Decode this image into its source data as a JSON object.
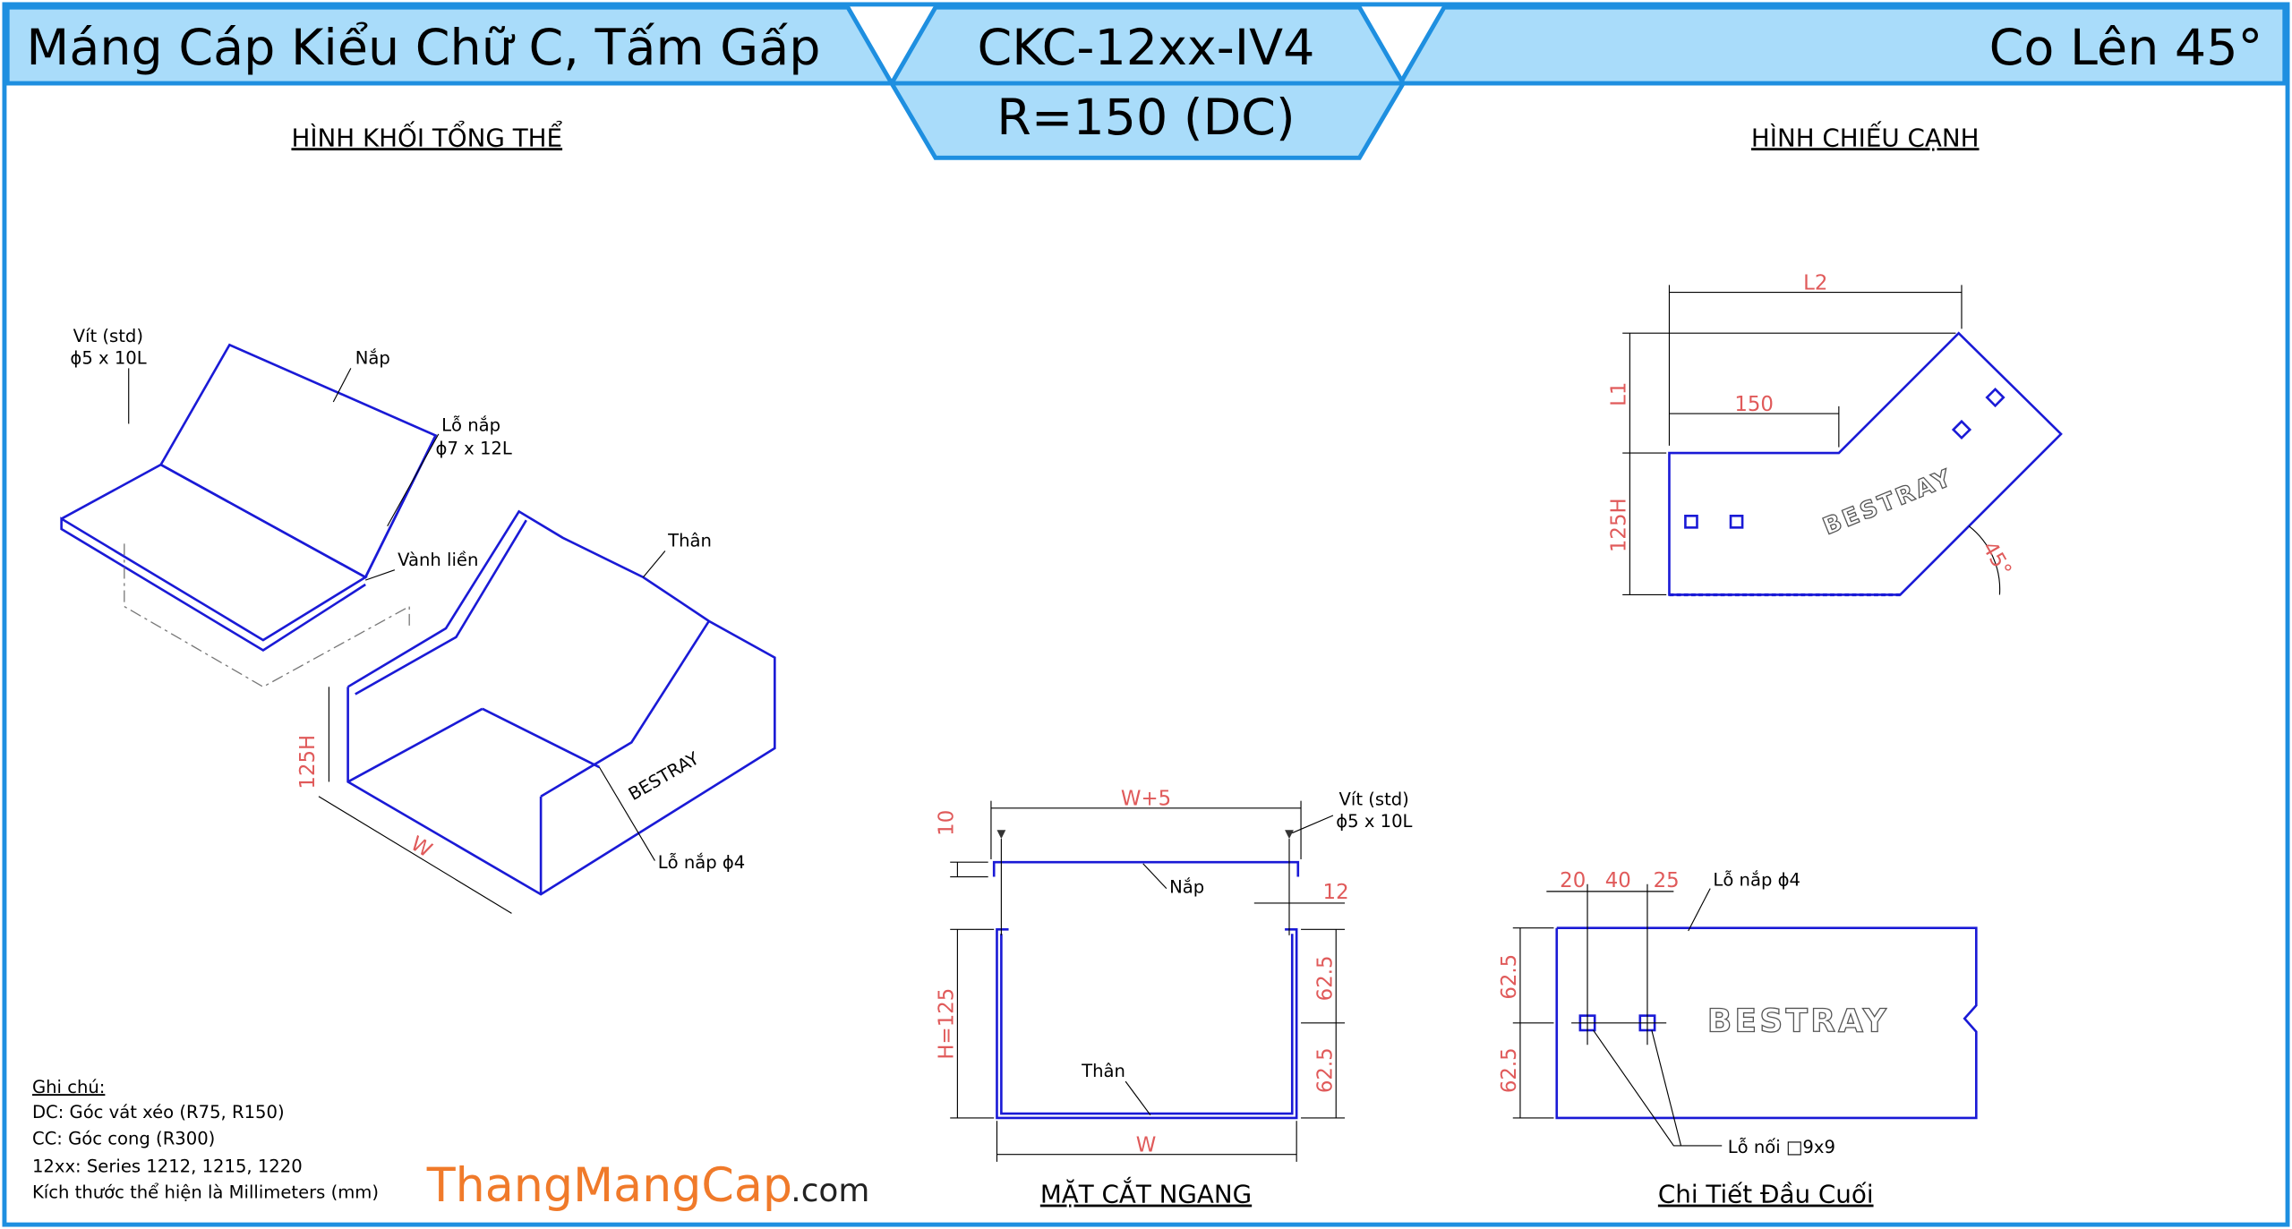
{
  "header": {
    "title": "Máng Cáp Kiểu Chữ C, Tấm Gấp",
    "code": "CKC-12xx-IV4",
    "radius": "R=150 (DC)",
    "variant": "Co Lên 45°"
  },
  "isometric": {
    "title": "HÌNH KHỐI TỔNG THỂ",
    "labels": [
      "Vít (std)",
      "ϕ5 x 10L",
      "Nắp",
      "Lỗ nắp",
      "ϕ7 x 12L",
      "Vành liền",
      "Thân",
      "125H",
      "W",
      "Lỗ nắp ϕ4",
      "BESTRAY"
    ]
  },
  "side_view": {
    "title": "HÌNH CHIẾU CẠNH",
    "labels": [
      "L2",
      "L1",
      "150",
      "125H",
      "45°",
      "BESTRAY"
    ]
  },
  "section": {
    "title": "MẶT CẮT NGANG",
    "labels": [
      "W+5",
      "10",
      "Vít (std)",
      "ϕ5 x 10L",
      "Nắp",
      "12",
      "H=125",
      "62.5",
      "62.5",
      "Thân",
      "W"
    ]
  },
  "end_detail": {
    "title": "Chi Tiết Đầu Cuối",
    "labels": [
      "20",
      "40",
      "25",
      "Lỗ nắp ϕ4",
      "62.5",
      "62.5",
      "BESTRAY",
      "Lỗ nối □9x9"
    ]
  },
  "notes": {
    "title": "Ghi chú:",
    "items": [
      "DC: Góc vát xéo (R75, R150)",
      "CC: Góc cong (R300)",
      "12xx: Series 1212, 1215, 1220",
      "Kích thước thể hiện là Millimeters (mm)"
    ]
  },
  "watermark": {
    "name": "ThangMangCap",
    "domain": ".com"
  }
}
